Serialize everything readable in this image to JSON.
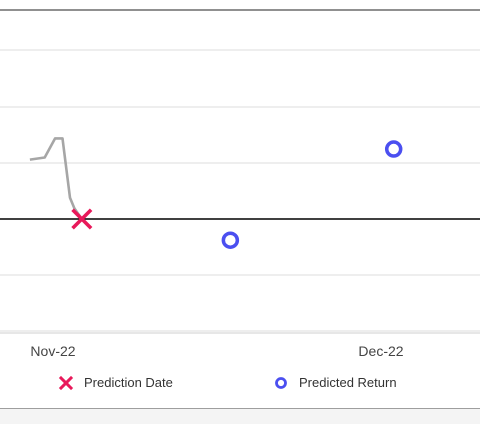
{
  "chart_data": {
    "type": "line",
    "title": "",
    "xlabel": "",
    "ylabel": "",
    "grid": true,
    "legend_position": "bottom",
    "x_ticks": [
      "Nov-22",
      "Dec-22"
    ],
    "series": [
      {
        "kind": "line",
        "points": [
          [
            -2.5,
            0.28
          ],
          [
            -1.5,
            0.29
          ],
          [
            -0.8,
            0.38
          ],
          [
            -0.3,
            0.38
          ],
          [
            0.2,
            0.1
          ],
          [
            0.5,
            0.05
          ],
          [
            1.0,
            0.0
          ]
        ]
      },
      {
        "name": "Prediction Date",
        "kind": "marker-x",
        "points": [
          [
            1.0,
            0.0
          ]
        ]
      },
      {
        "name": "Predicted Return",
        "kind": "marker-circle",
        "points": [
          [
            11.0,
            -0.1
          ],
          [
            22.0,
            0.33
          ]
        ]
      }
    ],
    "colors": {
      "line": "#a6a6a6",
      "prediction_date": "#e8195a",
      "predicted_return": "#4b4ff0",
      "zero_line": "#000000",
      "grid": "#dddddd"
    }
  }
}
